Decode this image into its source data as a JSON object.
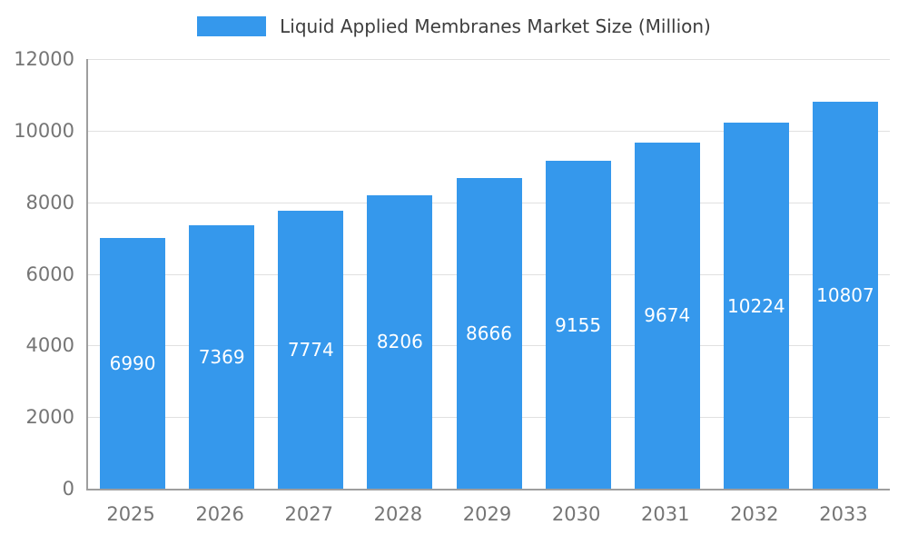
{
  "chart_data": {
    "type": "bar",
    "title": "Liquid Applied Membranes Market Size (Million)",
    "categories": [
      "2025",
      "2026",
      "2027",
      "2028",
      "2029",
      "2030",
      "2031",
      "2032",
      "2033"
    ],
    "values": [
      6990,
      7369,
      7774,
      8206,
      8666,
      9155,
      9674,
      10224,
      10807
    ],
    "series_name": "Liquid Applied Membranes Market Size (Million)",
    "xlabel": "",
    "ylabel": "",
    "ylim": [
      0,
      12000
    ],
    "yticks": [
      0,
      2000,
      4000,
      6000,
      8000,
      10000,
      12000
    ],
    "bar_color": "#3598EC",
    "bar_label_color": "#ffffff",
    "axis_color": "#9e9e9e",
    "grid_color": "#e0e0e0",
    "tick_label_color": "#757575",
    "legend_text_color": "#3d3d3d",
    "grid": true,
    "legend_position": "top"
  }
}
